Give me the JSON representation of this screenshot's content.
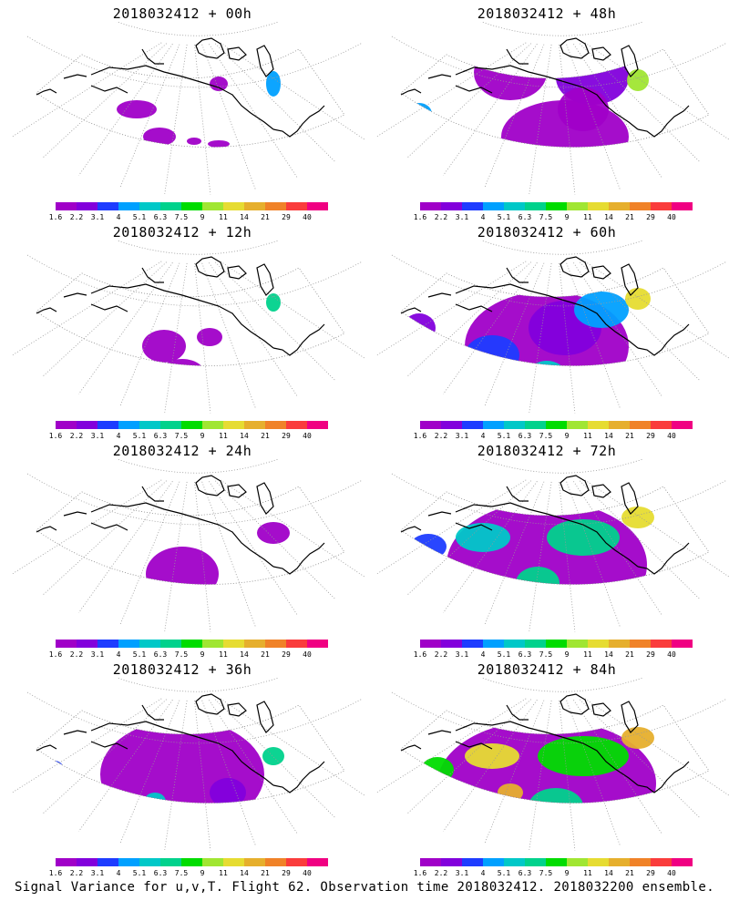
{
  "panels": [
    {
      "title": "2018032412 + 00h",
      "intensity": 0
    },
    {
      "title": "2018032412 + 48h",
      "intensity": 4
    },
    {
      "title": "2018032412 + 12h",
      "intensity": 1
    },
    {
      "title": "2018032412 + 60h",
      "intensity": 5
    },
    {
      "title": "2018032412 + 24h",
      "intensity": 2
    },
    {
      "title": "2018032412 + 72h",
      "intensity": 6
    },
    {
      "title": "2018032412 + 36h",
      "intensity": 3
    },
    {
      "title": "2018032412 + 84h",
      "intensity": 7
    }
  ],
  "colorbar": {
    "colors": [
      "#a000c8",
      "#8200dc",
      "#1e3cff",
      "#00a0ff",
      "#00c8c8",
      "#00d28c",
      "#00dc00",
      "#a0e632",
      "#e6dc32",
      "#e6af2d",
      "#f08228",
      "#fa3c3c",
      "#f00082"
    ],
    "labels": [
      "1.6",
      "2.2",
      "3.1",
      "4",
      "5.1",
      "6.3",
      "7.5",
      "9",
      "11",
      "14",
      "21",
      "29",
      "40"
    ]
  },
  "footer": "Signal Variance for u,v,T. Flight 62. Observation time 2018032412. 2018032200 ensemble."
}
